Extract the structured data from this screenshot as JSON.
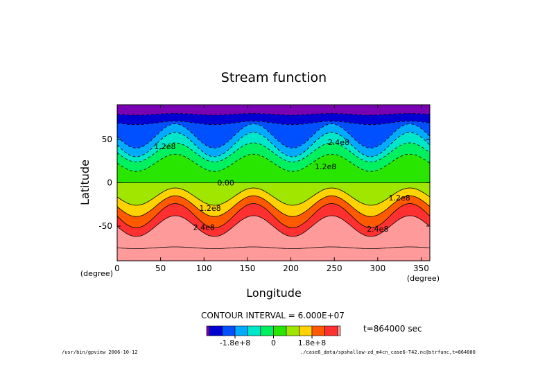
{
  "chart_data": {
    "type": "contour",
    "title": "Stream function",
    "xlabel": "Longitude",
    "ylabel": "Latitude",
    "x_unit": "(degree)",
    "y_unit": "(degree)",
    "xlim": [
      0,
      360
    ],
    "ylim": [
      -90,
      90
    ],
    "x_ticks": [
      0,
      50,
      100,
      150,
      200,
      250,
      300,
      350
    ],
    "y_ticks": [
      -50,
      0,
      50
    ],
    "contour_interval_text": "CONTOUR INTERVAL = 6.000E+07",
    "time_text": "t=864000 sec",
    "contour_labels": [
      {
        "text": "1.2e8",
        "lon": 55,
        "lat": 42
      },
      {
        "text": "2.4e8",
        "lon": 255,
        "lat": 47
      },
      {
        "text": "1.2e8",
        "lon": 240,
        "lat": 19
      },
      {
        "text": "0.00",
        "lon": 125,
        "lat": 0
      },
      {
        "text": "1.2e8",
        "lon": 107,
        "lat": -29
      },
      {
        "text": "1.2e8",
        "lon": 325,
        "lat": -17
      },
      {
        "text": "2.4e8",
        "lon": 100,
        "lat": -51
      },
      {
        "text": "2.4e8",
        "lon": 300,
        "lat": -53
      }
    ],
    "colorbar": {
      "levels": [
        -300000000.0,
        -240000000.0,
        -180000000.0,
        -120000000.0,
        -60000000.0,
        0,
        60000000.0,
        120000000.0,
        180000000.0,
        240000000.0,
        300000000.0
      ],
      "tick_labels": [
        {
          "text": "-1.8e+8",
          "value": -180000000.0
        },
        {
          "text": "0",
          "value": 0
        },
        {
          "text": "1.8e+8",
          "value": 180000000.0
        }
      ],
      "colors": [
        "#7a00b4",
        "#0000d2",
        "#0050ff",
        "#00aaff",
        "#00e6c8",
        "#00f060",
        "#28e600",
        "#a0e600",
        "#ffd200",
        "#ff5a00",
        "#ff3030",
        "#ff9a9a"
      ]
    },
    "field": {
      "contour_levels": [
        -300000000.0,
        -240000000.0,
        -180000000.0,
        -120000000.0,
        -60000000.0,
        0,
        60000000.0,
        120000000.0,
        180000000.0,
        240000000.0,
        300000000.0
      ],
      "band_boundaries_lat": [
        {
          "lat": 79,
          "amp": 1
        },
        {
          "lat": 69,
          "amp": 2
        },
        {
          "lat": 54,
          "amp": 14
        },
        {
          "lat": 44,
          "amp": 14
        },
        {
          "lat": 35,
          "amp": 11
        },
        {
          "lat": 23,
          "amp": 10
        },
        {
          "lat": 0,
          "amp": 0
        },
        {
          "lat": -16,
          "amp": 10
        },
        {
          "lat": -27,
          "amp": 12
        },
        {
          "lat": -38,
          "amp": 14
        },
        {
          "lat": -50,
          "amp": 12
        },
        {
          "lat": -75,
          "amp": 1
        },
        {
          "lat": -90,
          "amp": 0
        }
      ],
      "wave_number": 4,
      "wave_phase_lon": 67
    }
  },
  "footer": {
    "left": "/usr/bin/gpview  2006-10-12",
    "right": "./case6_data/spshallow-zd_m4cn_case6-T42.nc@strfunc,t=864000"
  }
}
